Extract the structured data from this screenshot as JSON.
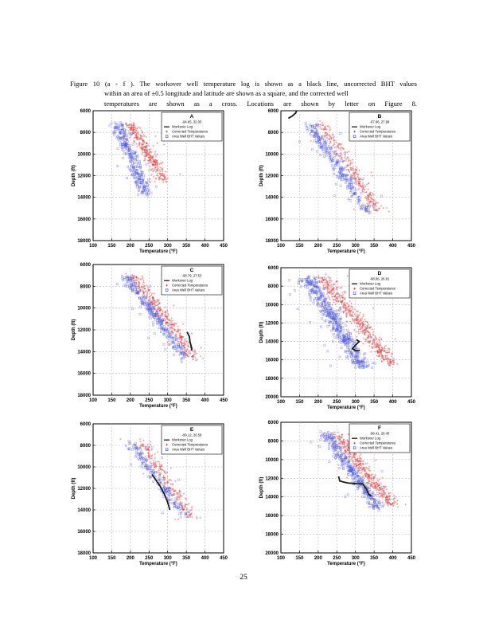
{
  "caption": {
    "line1": "Figure 10 (a - f ).  The workover well temperature log is shown as a black line, uncorrected BHT values",
    "line2": "within an area of ±0.5 longitude and latitude are shown as a square, and the corrected well",
    "line3": "temperatures are shown as a cross.  Locations are shown by letter on Figure 8."
  },
  "page_number": "25",
  "colors": {
    "workover": "#1a1a1a",
    "corrected": "#e23a3a",
    "area_bht": "#4a55e0",
    "grid": "#b8b8b8"
  },
  "legend_labels": [
    "Workover Log",
    "Corrected Temperatures",
    "Area Well BHT Values"
  ],
  "chart_data": [
    {
      "type": "scatter",
      "panel": "A",
      "coords": "-94.65, 32.05",
      "xlabel": "Temperature (°F)",
      "ylabel": "Depth (ft)",
      "xlim": [
        100,
        450
      ],
      "ylim": [
        18000,
        6000
      ],
      "y_inverted": true,
      "xticks": [
        "100",
        "150",
        "200",
        "250",
        "300",
        "350",
        "400",
        "450"
      ],
      "yticks": [
        "6000",
        "8000",
        "10000",
        "12000",
        "14000",
        "16000",
        "18000"
      ],
      "corrected_band": {
        "start": [
          200,
          7200
        ],
        "end": [
          290,
          12500
        ],
        "spread": 30,
        "count": 340
      },
      "area_band": {
        "start": [
          165,
          7200
        ],
        "end": [
          245,
          13800
        ],
        "spread": 32,
        "count": 300
      },
      "workover_log": []
    },
    {
      "type": "scatter",
      "panel": "B",
      "coords": "-97.66, 27.98",
      "xlabel": "Temperature (°F)",
      "ylabel": "Depth (ft)",
      "xlim": [
        100,
        450
      ],
      "ylim": [
        18000,
        6000
      ],
      "y_inverted": true,
      "xticks": [
        "100",
        "150",
        "200",
        "250",
        "300",
        "350",
        "400",
        "450"
      ],
      "yticks": [
        "6000",
        "8000",
        "10000",
        "12000",
        "14000",
        "16000",
        "18000"
      ],
      "corrected_band": {
        "start": [
          210,
          7200
        ],
        "end": [
          360,
          15200
        ],
        "spread": 30,
        "count": 280
      },
      "area_band": {
        "start": [
          180,
          7300
        ],
        "end": [
          330,
          15300
        ],
        "spread": 34,
        "count": 280
      },
      "workover_log": [
        [
          120,
          6700
        ],
        [
          130,
          6500
        ],
        [
          140,
          6200
        ],
        [
          142,
          6000
        ]
      ]
    },
    {
      "type": "scatter",
      "panel": "C",
      "coords": "-98.79, 27.53",
      "xlabel": "Temperature (°F)",
      "ylabel": "Depth (ft)",
      "xlim": [
        100,
        450
      ],
      "ylim": [
        18000,
        6000
      ],
      "y_inverted": true,
      "xticks": [
        "100",
        "150",
        "200",
        "250",
        "300",
        "350",
        "400",
        "450"
      ],
      "yticks": [
        "6000",
        "8000",
        "10000",
        "12000",
        "14000",
        "16000",
        "18000"
      ],
      "corrected_band": {
        "start": [
          210,
          7000
        ],
        "end": [
          380,
          14800
        ],
        "spread": 26,
        "count": 320
      },
      "area_band": {
        "start": [
          190,
          7100
        ],
        "end": [
          350,
          14600
        ],
        "spread": 26,
        "count": 300
      },
      "workover_log": [
        [
          352,
          12200
        ],
        [
          358,
          12600
        ],
        [
          360,
          13100
        ],
        [
          363,
          13500
        ],
        [
          365,
          13900
        ]
      ]
    },
    {
      "type": "scatter",
      "panel": "D",
      "coords": "-98.06, 26.81",
      "xlabel": "Temperature (°F)",
      "ylabel": "Depth (ft)",
      "xlim": [
        100,
        450
      ],
      "ylim": [
        20000,
        6000
      ],
      "y_inverted": true,
      "xticks": [
        "100",
        "150",
        "200",
        "250",
        "300",
        "350",
        "400",
        "450"
      ],
      "yticks": [
        "6000",
        "8000",
        "10000",
        "12000",
        "14000",
        "16000",
        "18000",
        "20000"
      ],
      "corrected_band": {
        "start": [
          210,
          7000
        ],
        "end": [
          400,
          16500
        ],
        "spread": 40,
        "count": 520
      },
      "area_band": {
        "start": [
          170,
          7000
        ],
        "end": [
          320,
          16800
        ],
        "spread": 40,
        "count": 520
      },
      "workover_log": [
        [
          302,
          13800
        ],
        [
          310,
          14000
        ],
        [
          300,
          14400
        ],
        [
          292,
          14800
        ],
        [
          300,
          15000
        ],
        [
          312,
          15000
        ]
      ]
    },
    {
      "type": "scatter",
      "panel": "E",
      "coords": "-99.12, 26.58",
      "xlabel": "Temperature (°F)",
      "ylabel": "Depth (ft)",
      "xlim": [
        100,
        450
      ],
      "ylim": [
        18000,
        6000
      ],
      "y_inverted": true,
      "xticks": [
        "100",
        "150",
        "200",
        "250",
        "300",
        "350",
        "400",
        "450"
      ],
      "yticks": [
        "6000",
        "8000",
        "10000",
        "12000",
        "14000",
        "16000",
        "18000"
      ],
      "corrected_band": {
        "start": [
          225,
          7500
        ],
        "end": [
          370,
          14800
        ],
        "spread": 30,
        "count": 200
      },
      "area_band": {
        "start": [
          200,
          7800
        ],
        "end": [
          350,
          14800
        ],
        "spread": 30,
        "count": 190
      },
      "workover_log": [
        [
          258,
          10700
        ],
        [
          268,
          11200
        ],
        [
          280,
          11800
        ],
        [
          292,
          12600
        ],
        [
          300,
          13300
        ],
        [
          306,
          14000
        ]
      ]
    },
    {
      "type": "scatter",
      "panel": "F",
      "coords": "-98.41, 26.45",
      "xlabel": "Temperature (°F)",
      "ylabel": "Depth (ft)",
      "xlim": [
        100,
        450
      ],
      "ylim": [
        20000,
        6000
      ],
      "y_inverted": true,
      "xticks": [
        "100",
        "150",
        "200",
        "250",
        "300",
        "350",
        "400",
        "450"
      ],
      "yticks": [
        "6000",
        "8000",
        "10000",
        "12000",
        "14000",
        "16000",
        "18000",
        "20000"
      ],
      "corrected_band": {
        "start": [
          250,
          7200
        ],
        "end": [
          400,
          15000
        ],
        "spread": 34,
        "count": 380
      },
      "area_band": {
        "start": [
          220,
          7200
        ],
        "end": [
          360,
          15200
        ],
        "spread": 34,
        "count": 360
      },
      "workover_log": [
        [
          255,
          11800
        ],
        [
          258,
          12300
        ],
        [
          278,
          12500
        ],
        [
          305,
          12600
        ],
        [
          320,
          12600
        ],
        [
          330,
          13200
        ],
        [
          335,
          13700
        ],
        [
          342,
          13900
        ]
      ]
    }
  ]
}
